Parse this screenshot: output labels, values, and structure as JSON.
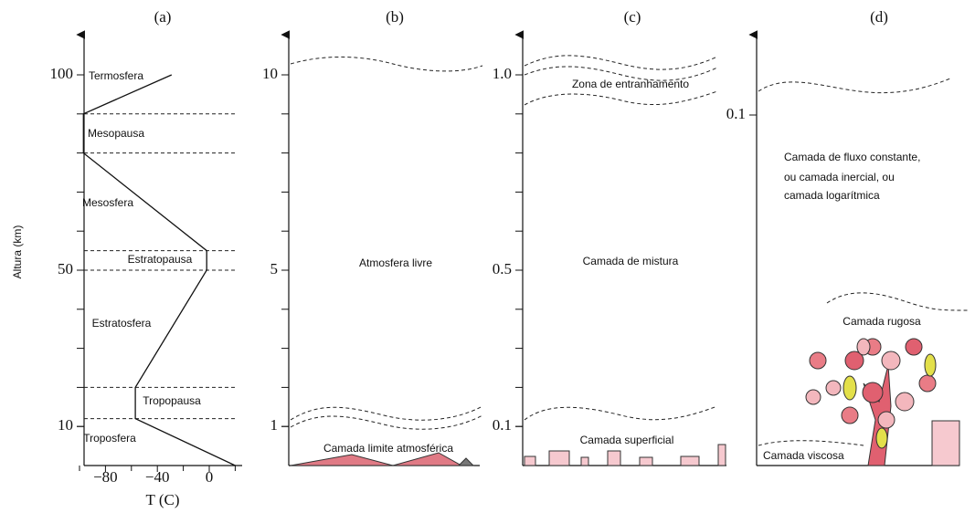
{
  "panels": [
    {
      "label": "(a)",
      "y_axis_title": "Altura (km)",
      "x_axis_title": "T (C)",
      "yticks": [
        10,
        50,
        100
      ],
      "xticks": [
        {
          "value": -80,
          "label": "−80"
        },
        {
          "value": -40,
          "label": "−40"
        },
        0
      ],
      "profile": {
        "x": [
          -29,
          -97,
          -97,
          -2,
          -2,
          -57,
          -57,
          20
        ],
        "y": [
          100,
          90,
          80,
          55,
          50,
          20,
          12,
          0
        ]
      },
      "boundaries": [
        90,
        80,
        55,
        50,
        20,
        12
      ],
      "layers": [
        "Termosfera",
        "Mesopausa",
        "Mesosfera",
        "Estratopausa",
        "Estratosfera",
        "Tropopausa",
        "Troposfera"
      ]
    },
    {
      "label": "(b)",
      "yticks": [
        1,
        5,
        10
      ],
      "layers": [
        "Atmosfera livre",
        "Camada limite atmosférica"
      ]
    },
    {
      "label": "(c)",
      "yticks": [
        0.1,
        0.5,
        {
          "value": 1,
          "label": "1.0"
        }
      ],
      "layers": [
        "Zona de entranhamento",
        "Camada de mistura",
        "Camada superficial"
      ]
    },
    {
      "label": "(d)",
      "yticks": [
        0.1
      ],
      "layers": [
        "Camada de fluxo constante,",
        "ou camada inercial, ou",
        "camada logarítmica",
        "Camada rugosa",
        "Camada viscosa"
      ]
    }
  ]
}
